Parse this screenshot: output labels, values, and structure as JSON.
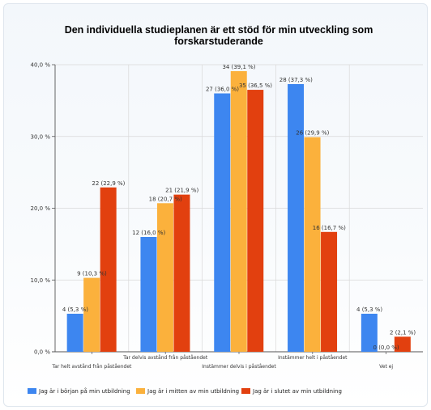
{
  "chart_data": {
    "type": "bar",
    "title": "Den individuella studieplanen är ett stöd för min utveckling som forskarstuderande",
    "categories": [
      "Tar helt avstånd från påståendet",
      "Tar delvis avstånd från påståendet",
      "Instämmer delvis i påståendet",
      "Instämmer helt i påståendet",
      "Vet ej"
    ],
    "ylim": [
      0,
      40
    ],
    "yticks": [
      "0,0 %",
      "10,0 %",
      "20,0 %",
      "30,0 %",
      "40,0 %"
    ],
    "grid": true,
    "legend_position": "bottom",
    "series": [
      {
        "name": "Jag är i början på min utbildning",
        "color": "#3d86f0",
        "values": [
          5.3,
          16.0,
          36.0,
          37.3,
          5.3
        ],
        "labels": [
          "4 (5,3 %)",
          "12 (16,0 %)",
          "27 (36,0 %)",
          "28 (37,3 %)",
          "4 (5,3 %)"
        ]
      },
      {
        "name": "Jag är i mitten av min utbildning",
        "color": "#fbb13c",
        "values": [
          10.3,
          20.7,
          39.1,
          29.9,
          0.0
        ],
        "labels": [
          "9 (10,3 %)",
          "18 (20,7 %)",
          "34 (39,1 %)",
          "26 (29,9 %)",
          "0 (0,0 %)"
        ]
      },
      {
        "name": "Jag är i slutet av min utbildning",
        "color": "#e2400f",
        "values": [
          22.9,
          21.9,
          36.5,
          16.7,
          2.1
        ],
        "labels": [
          "22 (22,9 %)",
          "21 (21,9 %)",
          "35 (36,5 %)",
          "16 (16,7 %)",
          "2 (2,1 %)"
        ]
      }
    ]
  }
}
